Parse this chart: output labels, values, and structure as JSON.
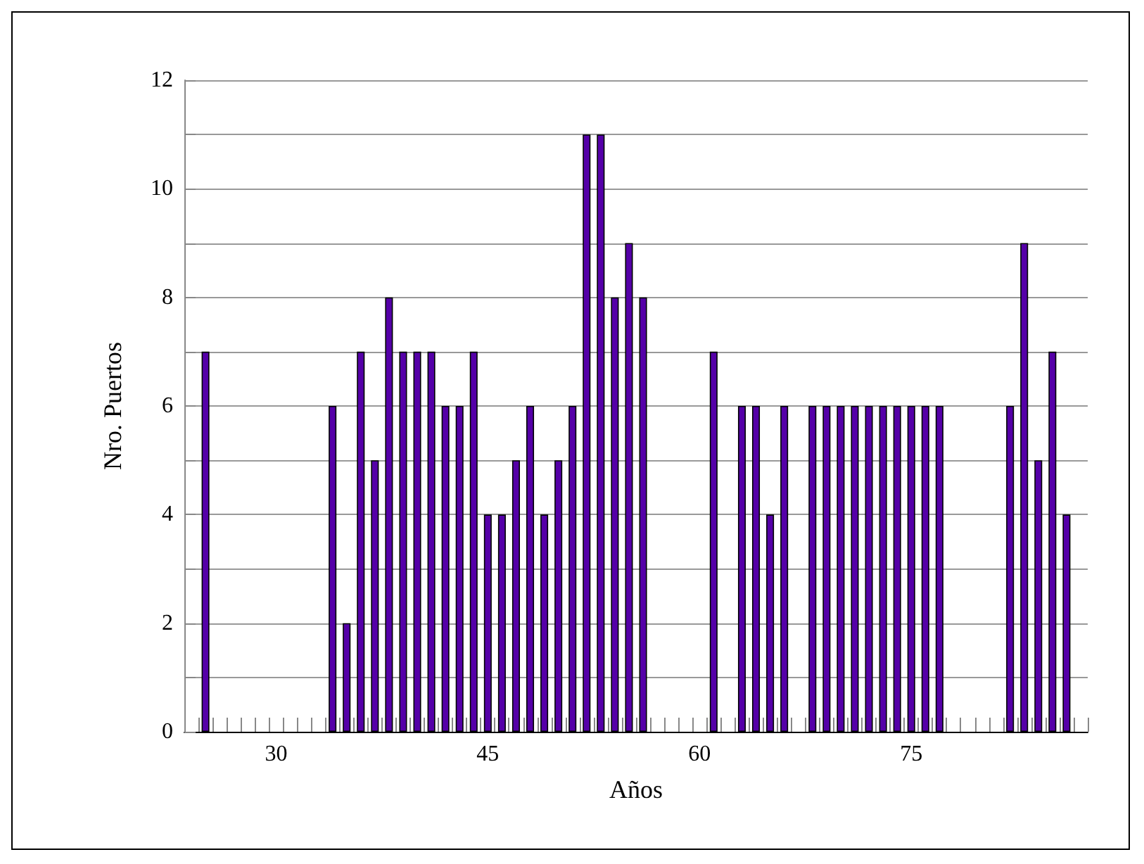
{
  "chart_data": {
    "type": "bar",
    "xlabel": "Años",
    "ylabel": "Nro. Puertos",
    "categories": [
      null,
      null,
      null,
      null,
      null,
      null,
      "30",
      null,
      null,
      null,
      null,
      null,
      null,
      null,
      null,
      null,
      null,
      null,
      null,
      null,
      null,
      "45",
      null,
      null,
      null,
      null,
      null,
      null,
      null,
      null,
      null,
      null,
      null,
      null,
      null,
      null,
      "60",
      null,
      null,
      null,
      null,
      null,
      null,
      null,
      null,
      null,
      null,
      null,
      null,
      null,
      null,
      "75",
      null,
      null,
      null,
      null,
      null,
      null,
      null,
      null,
      null,
      null,
      null,
      null
    ],
    "values": [
      null,
      7,
      null,
      null,
      null,
      null,
      null,
      null,
      null,
      null,
      6,
      2,
      7,
      5,
      8,
      7,
      7,
      7,
      6,
      6,
      7,
      4,
      4,
      5,
      6,
      4,
      5,
      6,
      11,
      11,
      8,
      9,
      8,
      null,
      null,
      null,
      null,
      7,
      null,
      6,
      6,
      4,
      6,
      null,
      6,
      6,
      6,
      6,
      6,
      6,
      6,
      6,
      6,
      6,
      null,
      null,
      null,
      null,
      6,
      9,
      5,
      7,
      4,
      null
    ],
    "color": "#5500a8",
    "ylim": [
      0,
      12
    ],
    "yticks": [
      0,
      {
        "value": 1,
        "label": null
      },
      2,
      {
        "value": 3,
        "label": null
      },
      4,
      {
        "value": 5,
        "label": null
      },
      6,
      {
        "value": 7,
        "label": null
      },
      8,
      {
        "value": 9,
        "label": null
      },
      10,
      {
        "value": 11,
        "label": null
      },
      12
    ],
    "grid": "y"
  }
}
